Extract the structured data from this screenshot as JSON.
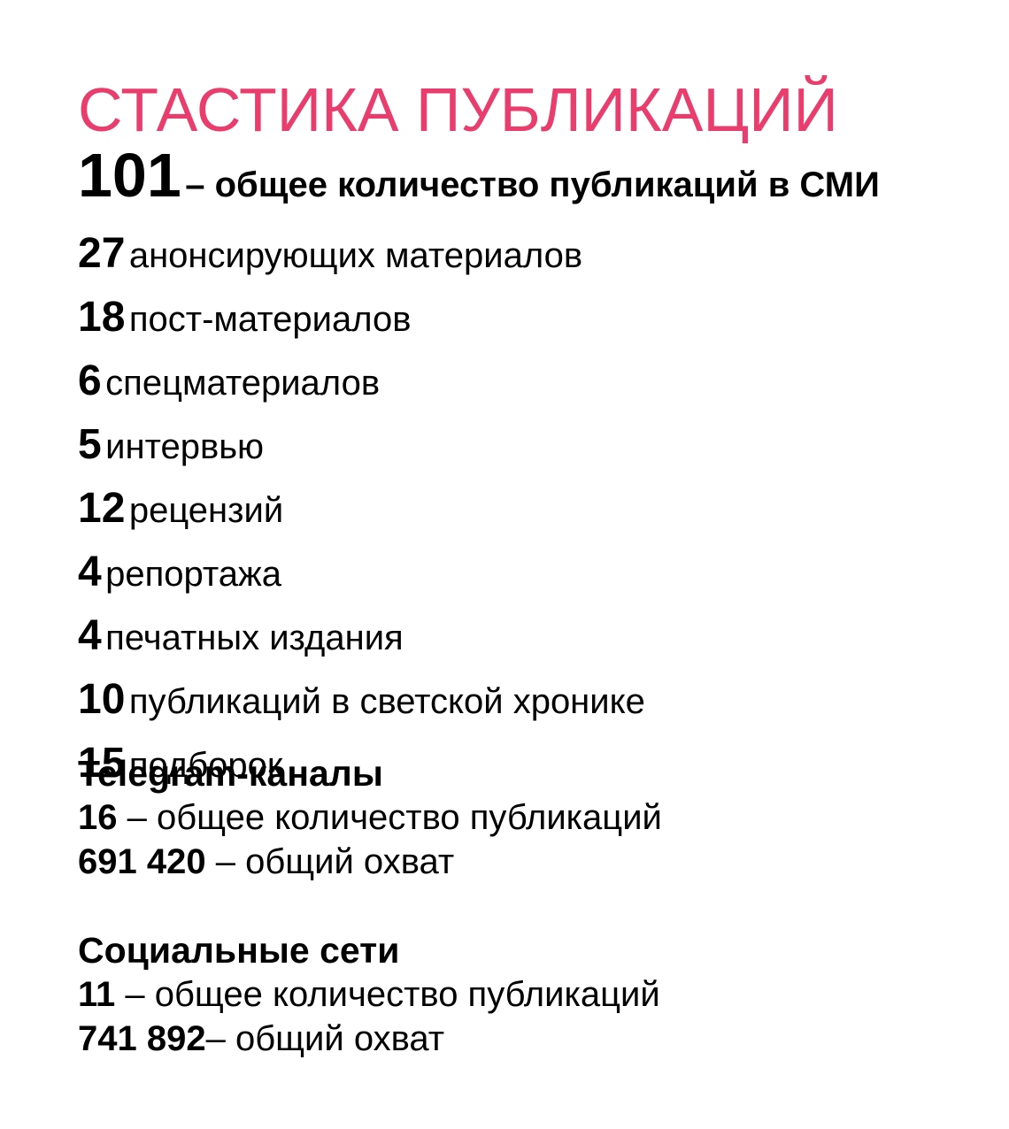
{
  "page": {
    "title": "СТАСТИКА ПУБЛИКАЦИЙ",
    "accent_color": "#e83d6d",
    "background_color": "#ffffff",
    "text_color": "#000000"
  },
  "main_stats": {
    "headline": {
      "number": "101",
      "rest": "– общее количество публикаций в СМИ"
    },
    "items": [
      {
        "number": "27",
        "label": "анонсирующих материалов"
      },
      {
        "number": "18",
        "label": "пост-материалов"
      },
      {
        "number": "6",
        "label": "спецматериалов"
      },
      {
        "number": "5",
        "label": "интервью"
      },
      {
        "number": "12",
        "label": "рецензий"
      },
      {
        "number": "4",
        "label": "репортажа"
      },
      {
        "number": "4",
        "label": "печатных издания"
      },
      {
        "number": "10",
        "label": "публикаций в светской хронике"
      },
      {
        "number": "15",
        "label": "подборок"
      }
    ]
  },
  "sections": [
    {
      "heading": "Telegram-каналы",
      "rows": [
        {
          "number": "16",
          "rest": " – общее количество публикаций"
        },
        {
          "number": "691 420",
          "rest": " – общий охват"
        }
      ]
    },
    {
      "heading": "Социальные сети",
      "rows": [
        {
          "number": "11",
          "rest": " – общее количество публикаций"
        },
        {
          "number": "741 892",
          "rest": "– общий охват"
        }
      ]
    }
  ]
}
